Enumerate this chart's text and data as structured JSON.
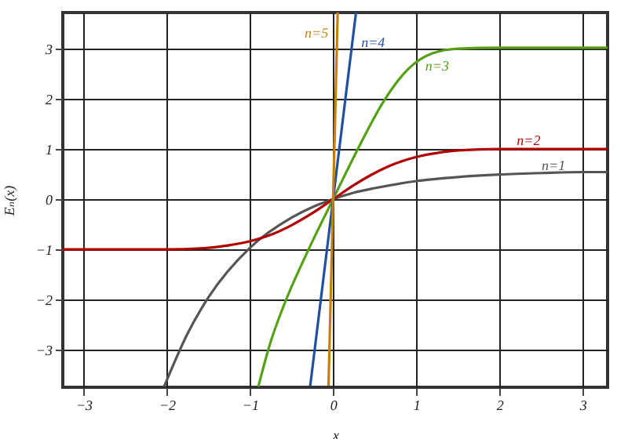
{
  "chart_data": {
    "type": "line",
    "xlabel": "x",
    "ylabel": "Eₙ(x)",
    "xlim": [
      -3.25,
      3.3
    ],
    "ylim": [
      -3.75,
      3.72
    ],
    "xticks": [
      -3,
      -2,
      -1,
      0,
      1,
      2,
      3
    ],
    "yticks": [
      -3,
      -2,
      -1,
      0,
      1,
      2,
      3
    ],
    "grid": true,
    "legend": false,
    "marker": "none",
    "line_style": "solid",
    "series": [
      {
        "name": "n=1",
        "color": "#555555",
        "x": [
          -2.03,
          -1.75,
          -1.5,
          -1,
          -0.5,
          -0.25,
          0,
          0.25,
          0.5,
          1,
          1.5,
          2,
          2.5,
          3,
          3.3
        ],
        "values": [
          -3.73,
          -2.68,
          -1.96,
          -0.97,
          -0.37,
          -0.16,
          0,
          0.13,
          0.22,
          0.36,
          0.44,
          0.49,
          0.52,
          0.54,
          0.54
        ]
      },
      {
        "name": "n=2",
        "color": "#b00000",
        "x": [
          -3.25,
          -2,
          -1.5,
          -1.25,
          -1,
          -0.75,
          -0.5,
          -0.25,
          0,
          0.25,
          0.5,
          0.75,
          1,
          1.25,
          1.5,
          2,
          3.3
        ],
        "values": [
          -1,
          -1,
          -0.97,
          -0.92,
          -0.84,
          -0.71,
          -0.52,
          -0.28,
          0,
          0.28,
          0.52,
          0.71,
          0.84,
          0.92,
          0.97,
          1,
          1
        ]
      },
      {
        "name": "n=3",
        "color": "#55a015",
        "x": [
          -0.9,
          -0.75,
          -0.6,
          -0.3,
          0,
          0.3,
          0.6,
          0.9,
          1.2,
          1.5,
          2,
          3.3
        ],
        "values": [
          -3.74,
          -2.84,
          -2.15,
          -1.02,
          0,
          1.01,
          1.93,
          2.59,
          2.91,
          3.0,
          3.02,
          3.02
        ]
      },
      {
        "name": "n=4",
        "color": "#2050a0",
        "x": [
          -0.275,
          -0.15,
          0,
          0.15,
          0.275
        ],
        "values": [
          -3.72,
          -2.03,
          0,
          2.03,
          3.72
        ]
      },
      {
        "name": "n=5",
        "color": "#c87f0a",
        "x": [
          -0.055,
          0,
          0.055
        ],
        "values": [
          -3.72,
          0,
          3.72
        ]
      }
    ]
  }
}
